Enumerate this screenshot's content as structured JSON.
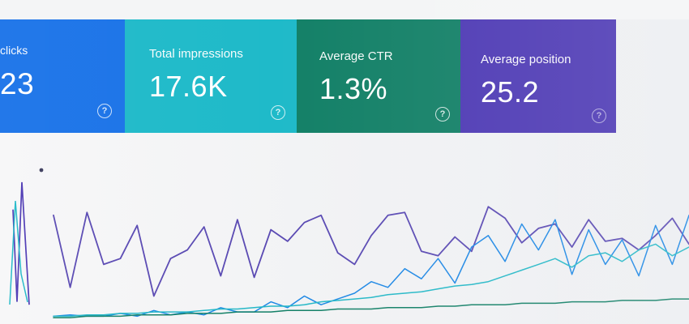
{
  "metrics": [
    {
      "key": "clicks",
      "label": "clicks",
      "value": "23",
      "color": "#1a73e8",
      "help_icon": "question-circle-icon"
    },
    {
      "key": "impressions",
      "label": "Total impressions",
      "value": "17.6K",
      "color": "#1fbac9",
      "help_icon": "question-circle-icon"
    },
    {
      "key": "ctr",
      "label": "Average CTR",
      "value": "1.3%",
      "color": "#138067",
      "help_icon": "question-circle-icon"
    },
    {
      "key": "position",
      "label": "Average position",
      "value": "25.2",
      "color": "#4d39b4",
      "help_icon": "question-circle-icon"
    }
  ],
  "chart_data": {
    "type": "line",
    "series": [
      {
        "color": "#5a4ab3",
        "values": [
          0.72,
          0.22,
          0.74,
          0.38,
          0.42,
          0.65,
          0.16,
          0.42,
          0.48,
          0.64,
          0.3,
          0.69,
          0.29,
          0.62,
          0.54,
          0.67,
          0.72,
          0.46,
          0.38,
          0.58,
          0.72,
          0.74,
          0.47,
          0.44,
          0.57,
          0.47,
          0.78,
          0.7,
          0.53,
          0.63,
          0.66,
          0.5,
          0.69,
          0.54,
          0.56,
          0.48,
          0.58,
          0.7,
          0.52
        ]
      },
      {
        "color": "#1e88e5",
        "values": [
          0.02,
          0.03,
          0.02,
          0.02,
          0.04,
          0.02,
          0.06,
          0.03,
          0.05,
          0.03,
          0.08,
          0.05,
          0.05,
          0.12,
          0.08,
          0.16,
          0.1,
          0.14,
          0.18,
          0.26,
          0.22,
          0.35,
          0.28,
          0.42,
          0.25,
          0.5,
          0.58,
          0.4,
          0.66,
          0.48,
          0.69,
          0.31,
          0.62,
          0.38,
          0.55,
          0.3,
          0.65,
          0.38,
          0.72
        ]
      },
      {
        "color": "#25b8c7",
        "values": [
          0.02,
          0.02,
          0.03,
          0.03,
          0.04,
          0.04,
          0.05,
          0.05,
          0.05,
          0.06,
          0.07,
          0.07,
          0.08,
          0.09,
          0.09,
          0.1,
          0.12,
          0.13,
          0.14,
          0.15,
          0.17,
          0.18,
          0.19,
          0.21,
          0.23,
          0.24,
          0.26,
          0.3,
          0.34,
          0.38,
          0.42,
          0.36,
          0.44,
          0.46,
          0.4,
          0.48,
          0.52,
          0.44,
          0.5
        ]
      },
      {
        "color": "#138067",
        "values": [
          0.01,
          0.01,
          0.02,
          0.02,
          0.02,
          0.03,
          0.03,
          0.03,
          0.04,
          0.04,
          0.04,
          0.05,
          0.05,
          0.05,
          0.06,
          0.06,
          0.06,
          0.07,
          0.07,
          0.07,
          0.08,
          0.08,
          0.08,
          0.09,
          0.09,
          0.1,
          0.1,
          0.1,
          0.11,
          0.11,
          0.11,
          0.12,
          0.12,
          0.12,
          0.13,
          0.13,
          0.13,
          0.14,
          0.14
        ]
      }
    ],
    "spike": {
      "color": "#4d39b4",
      "values": [
        0.76,
        0.12,
        0.95,
        0.1
      ]
    },
    "ylim": [
      0,
      1
    ],
    "grid": false,
    "legend": "none"
  }
}
